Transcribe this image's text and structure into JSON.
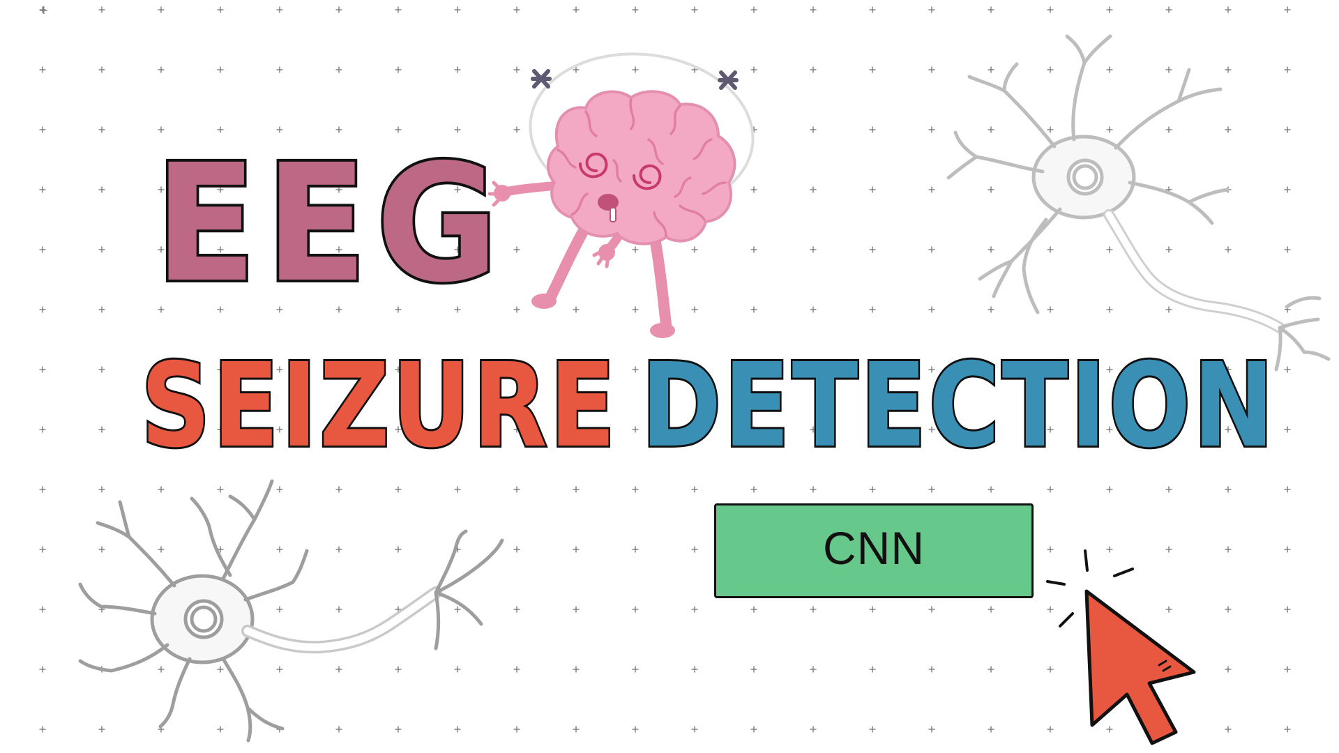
{
  "title": {
    "line1": "EEG",
    "line2_word1": "SEIZURE",
    "line2_word2": "DETECTION"
  },
  "button": {
    "label": "CNN"
  },
  "colors": {
    "background": "#ffffff",
    "grid_mark": "#7a7a7a",
    "eeg_fill": "#bd6986",
    "seizure_fill": "#e8573f",
    "detection_fill": "#3a8fb5",
    "button_fill": "#66c98b",
    "outline": "#111111",
    "cursor_fill": "#e8573f",
    "brain_pink": "#f0a9c2",
    "neuron_gray": "#b8b8b8"
  },
  "icons": {
    "brain": "dizzy-brain-icon",
    "neuron_top_right": "neuron-icon",
    "neuron_bottom_left": "neuron-icon",
    "cursor": "cursor-arrow-icon"
  }
}
